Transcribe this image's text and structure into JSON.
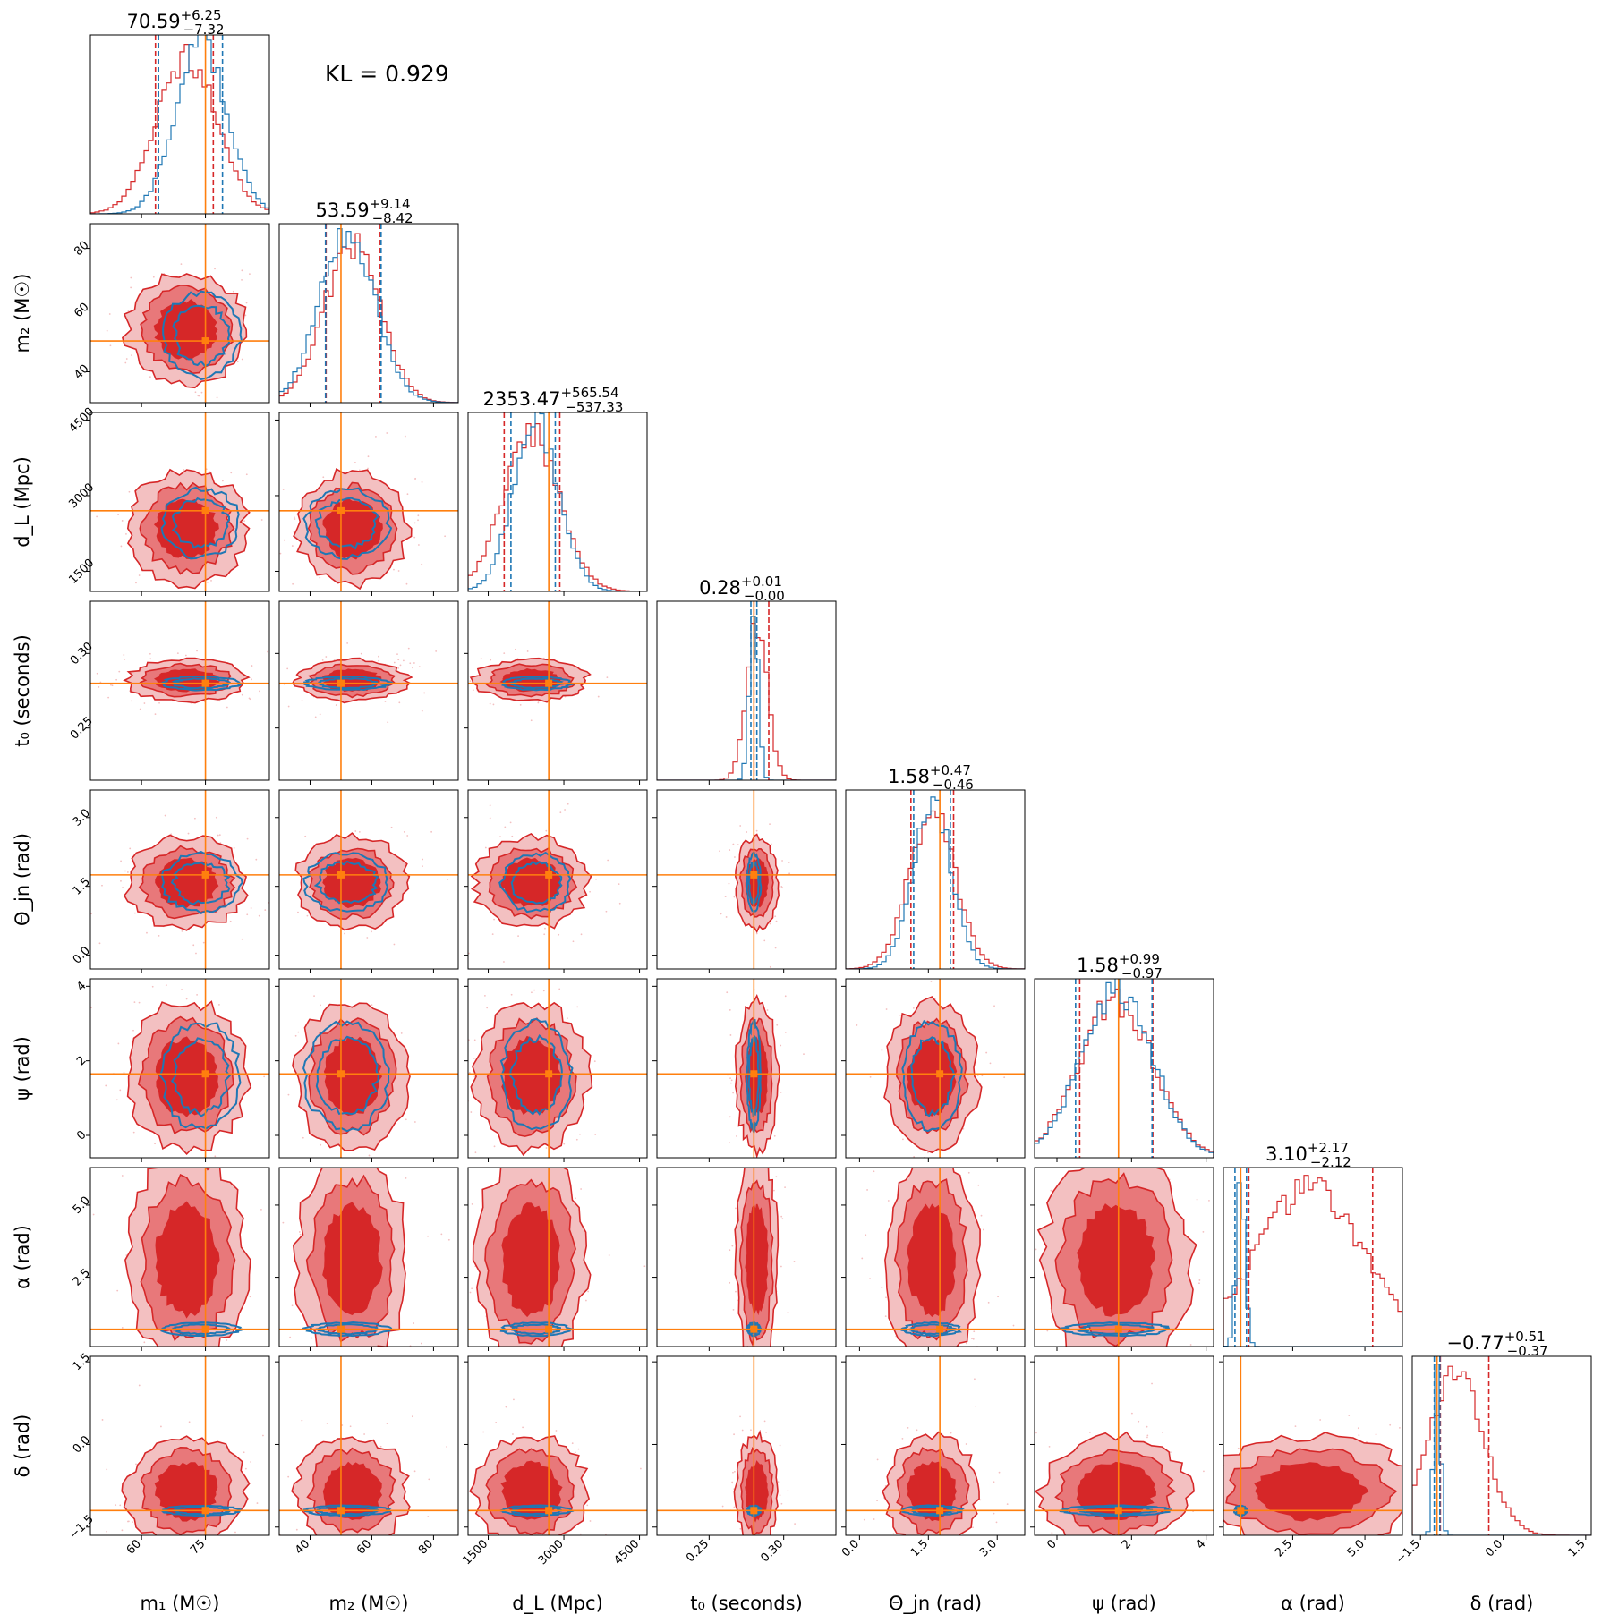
{
  "annotation": "KL = 0.929",
  "colors": {
    "red": "#d62728",
    "red_mid": "#e8787a",
    "red_light": "#f3c0c1",
    "blue": "#1f77b4",
    "orange": "#ff7f0e"
  },
  "chart_data": {
    "type": "corner",
    "parameters": [
      {
        "xlabel": "m₁ (M☉)",
        "ylabel": "m₂ (M☉)"
      },
      {
        "xlabel": "m₂ (M☉)",
        "ylabel": "m₂ (M☉)"
      },
      {
        "xlabel": "d_L (Mpc)",
        "ylabel": "d_L (Mpc)"
      },
      {
        "xlabel": "t₀ (seconds)",
        "ylabel": "t₀ (seconds)"
      },
      {
        "xlabel": "Θ_jn (rad)",
        "ylabel": "Θ_jn (rad)"
      },
      {
        "xlabel": "ψ (rad)",
        "ylabel": "ψ (rad)"
      },
      {
        "xlabel": "α (rad)",
        "ylabel": "α (rad)"
      },
      {
        "xlabel": "δ (rad)",
        "ylabel": "δ (rad)"
      }
    ],
    "axis_labels": [
      "m₁ (M☉)",
      "m₂ (M☉)",
      "d_L (Mpc)",
      "t₀ (seconds)",
      "Θ_jn (rad)",
      "ψ (rad)",
      "α (rad)",
      "δ (rad)"
    ],
    "ranges": [
      [
        48,
        90
      ],
      [
        30,
        88
      ],
      [
        1100,
        4650
      ],
      [
        0.215,
        0.335
      ],
      [
        -0.3,
        3.6
      ],
      [
        -0.6,
        4.2
      ],
      [
        0.1,
        6.3
      ],
      [
        -1.65,
        1.6
      ]
    ],
    "ticks": [
      [
        60,
        75
      ],
      [
        40,
        60,
        80
      ],
      [
        1500,
        3000,
        4500
      ],
      [
        0.25,
        0.3
      ],
      [
        0.0,
        1.5,
        3.0
      ],
      [
        0,
        2,
        4
      ],
      [
        2.5,
        5.0
      ],
      [
        -1.5,
        0.0,
        1.5
      ]
    ],
    "tick_labels": [
      [
        "60",
        "75"
      ],
      [
        "40",
        "60",
        "80"
      ],
      [
        "1500",
        "3000",
        "4500"
      ],
      [
        "0.25",
        "0.30"
      ],
      [
        "0.0",
        "1.5",
        "3.0"
      ],
      [
        "0",
        "2",
        "4"
      ],
      [
        "2.5",
        "5.0"
      ],
      [
        "−1.5",
        "0.0",
        "1.5"
      ]
    ],
    "truths": [
      75,
      50,
      2700,
      0.28,
      1.75,
      1.65,
      0.7,
      -1.2
    ],
    "titles": [
      {
        "median": "70.59",
        "plus": "+6.25",
        "minus": "−7.32"
      },
      {
        "median": "53.59",
        "plus": "+9.14",
        "minus": "−8.42"
      },
      {
        "median": "2353.47",
        "plus": "+565.54",
        "minus": "−537.33"
      },
      {
        "median": "0.28",
        "plus": "+0.01",
        "minus": "−0.00"
      },
      {
        "median": "1.58",
        "plus": "+0.47",
        "minus": "−0.46"
      },
      {
        "median": "1.58",
        "plus": "+0.99",
        "minus": "−0.97"
      },
      {
        "median": "3.10",
        "plus": "+2.17",
        "minus": "−2.12"
      },
      {
        "median": "−0.77",
        "plus": "+0.51",
        "minus": "−0.37"
      }
    ],
    "posterior_red": {
      "mean": [
        70.6,
        53.6,
        2350,
        0.282,
        1.58,
        1.58,
        3.1,
        -0.85
      ],
      "sd": [
        7,
        9,
        560,
        0.007,
        0.5,
        1.0,
        1.85,
        0.5
      ],
      "hist_median": [
        70.59,
        53.59,
        2353.47,
        0.28,
        1.58,
        1.58,
        3.1,
        -0.77
      ],
      "quantile_lo": [
        63.27,
        45.17,
        1816.14,
        0.28,
        1.12,
        0.61,
        0.98,
        -1.14
      ],
      "quantile_hi": [
        76.84,
        62.73,
        2919.01,
        0.29,
        2.05,
        2.57,
        5.27,
        -0.26
      ]
    },
    "posterior_blue": {
      "mean": [
        74,
        52,
        2450,
        0.28,
        1.58,
        1.6,
        0.7,
        -1.2
      ],
      "sd": [
        6,
        9,
        450,
        0.003,
        0.42,
        0.95,
        0.15,
        0.06
      ],
      "quantile_lo": [
        64,
        45,
        1950,
        0.278,
        1.18,
        0.5,
        0.5,
        -1.25
      ],
      "quantile_hi": [
        79,
        63,
        2830,
        0.282,
        1.98,
        2.55,
        0.9,
        -1.15
      ]
    },
    "contour_levels": 3,
    "grid": false,
    "legend": "none"
  }
}
